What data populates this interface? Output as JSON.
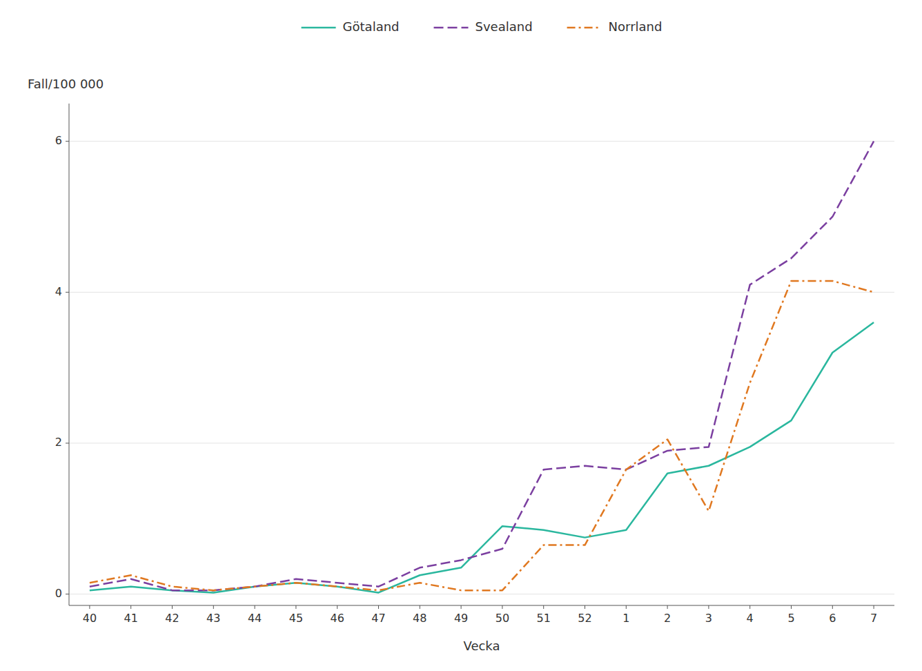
{
  "chart_data": {
    "type": "line",
    "xlabel": "Vecka",
    "ylabel": "Fall/100 000",
    "categories": [
      "40",
      "41",
      "42",
      "43",
      "44",
      "45",
      "46",
      "47",
      "48",
      "49",
      "50",
      "51",
      "52",
      "1",
      "2",
      "3",
      "4",
      "5",
      "6",
      "7"
    ],
    "series": [
      {
        "name": "Götaland",
        "color": "#2ab79e",
        "line_style": "solid",
        "values": [
          0.05,
          0.1,
          0.05,
          0.02,
          0.1,
          0.15,
          0.1,
          0.02,
          0.25,
          0.35,
          0.9,
          0.85,
          0.75,
          0.85,
          1.6,
          1.7,
          1.95,
          2.3,
          3.2,
          3.6
        ]
      },
      {
        "name": "Svealand",
        "color": "#7b3fa0",
        "line_style": "dashed",
        "values": [
          0.1,
          0.2,
          0.05,
          0.05,
          0.1,
          0.2,
          0.15,
          0.1,
          0.35,
          0.45,
          0.6,
          1.65,
          1.7,
          1.65,
          1.9,
          1.95,
          4.1,
          4.45,
          5.0,
          6.0
        ]
      },
      {
        "name": "Norrland",
        "color": "#e07820",
        "line_style": "dashdot",
        "values": [
          0.15,
          0.25,
          0.1,
          0.05,
          0.1,
          0.15,
          0.1,
          0.05,
          0.15,
          0.05,
          0.05,
          0.65,
          0.65,
          1.65,
          2.05,
          1.1,
          2.8,
          4.15,
          4.15,
          4.0
        ]
      }
    ],
    "ylim": [
      -0.15,
      6.5
    ],
    "yticks": [
      0,
      2,
      4,
      6
    ],
    "grid": true,
    "legend": "top"
  }
}
